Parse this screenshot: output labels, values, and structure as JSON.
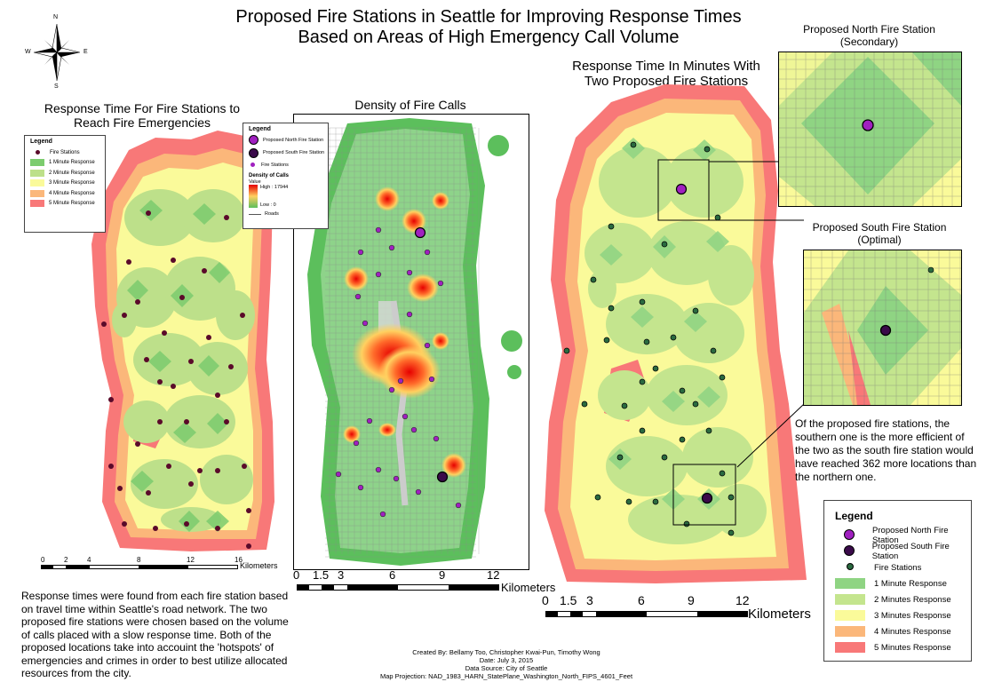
{
  "title": {
    "line1": "Proposed Fire Stations in Seattle for Improving Response Times",
    "line2": "Based on Areas of High Emergency Call Volume"
  },
  "compass": {
    "n": "N",
    "s": "S",
    "e": "E",
    "w": "W",
    "icon": "compass-rose-icon"
  },
  "left_map": {
    "title_line1": "Response Time For Fire Stations to",
    "title_line2": "Reach Fire Emergencies",
    "legend": {
      "title": "Legend",
      "items": [
        {
          "label": "Fire Stations",
          "color": "#5a0a2a"
        },
        {
          "label": "1 Minute Response",
          "color": "#7ccc6e"
        },
        {
          "label": "2 Minute Response",
          "color": "#bde08a"
        },
        {
          "label": "3 Minute Response",
          "color": "#fafa9a"
        },
        {
          "label": "4 Minute Response",
          "color": "#fbb77a"
        },
        {
          "label": "5 Minute Response",
          "color": "#f87878"
        }
      ]
    },
    "scale": {
      "ticks": [
        "0",
        "2",
        "4",
        "8",
        "12",
        "16"
      ],
      "unit": "Kilometers"
    }
  },
  "middle_map": {
    "title": "Density of Fire Calls",
    "legend": {
      "title": "Legend",
      "north": "Proposed North Fire Station",
      "south": "Proposed South Fire Station",
      "stations": "Fire Stations",
      "density_title": "Density of Calls",
      "value_label": "Value",
      "high": "High : 17944",
      "low": "Low : 0",
      "roads": "Roads"
    },
    "scale": {
      "ticks": [
        "0",
        "1.5",
        "3",
        "6",
        "9",
        "12"
      ],
      "unit": "Kilometers"
    }
  },
  "right_map": {
    "title_line1": "Response Time In Minutes With",
    "title_line2": "Two Proposed Fire Stations",
    "scale": {
      "ticks": [
        "0",
        "1.5",
        "3",
        "6",
        "9",
        "12"
      ],
      "unit": "Kilometers"
    }
  },
  "north_inset": {
    "title_line1": "Proposed North Fire Station",
    "title_line2": "(Secondary)"
  },
  "south_inset": {
    "title_line1": "Proposed South Fire Station",
    "title_line2": "(Optimal)"
  },
  "conclusion": "Of the proposed fire stations, the southern one is the more efficient of the two as the south fire station would have reached 362 more locations than the northern one.",
  "big_legend": {
    "title": "Legend",
    "items": [
      {
        "label": "Proposed North Fire Station",
        "kind": "north"
      },
      {
        "label": "Proposed South Fire Station",
        "kind": "south"
      },
      {
        "label": "Fire Stations",
        "kind": "station"
      },
      {
        "label": "1 Minute Response",
        "color": "#8fd483"
      },
      {
        "label": "2 Minutes Response",
        "color": "#c4e58e"
      },
      {
        "label": "3 Minutes Response",
        "color": "#fafa9a"
      },
      {
        "label": "4 Minutes  Response",
        "color": "#fbb77a"
      },
      {
        "label": "5 Minutes Response",
        "color": "#f87878"
      }
    ]
  },
  "description": "Response times were found from each fire station based on travel time within Seattle's road network. The two proposed fire stations were chosen based on the volume of calls placed with a slow response time. Both of the proposed locations take into accouint the 'hotspots' of emergencies and crimes in order to best utilize allocated resources from the city.",
  "credits": {
    "created_by": "Created By: Bellamy Too, Christopher Kwai-Pun, Timothy Wong",
    "date": "Date: July 3, 2015",
    "source": "Data Source: City of Seattle",
    "projection": "Map Projection: NAD_1983_HARN_StatePlane_Washington_North_FIPS_4601_Feet"
  },
  "colors": {
    "min1": "#7ccc6e",
    "min2": "#bde08a",
    "min3": "#fafa9a",
    "min4": "#fbb77a",
    "min5": "#f87878",
    "station": "#5a0a2a",
    "proposed": "#a020c0",
    "density_high": "#e60000",
    "density_low": "#5cbf5c"
  }
}
